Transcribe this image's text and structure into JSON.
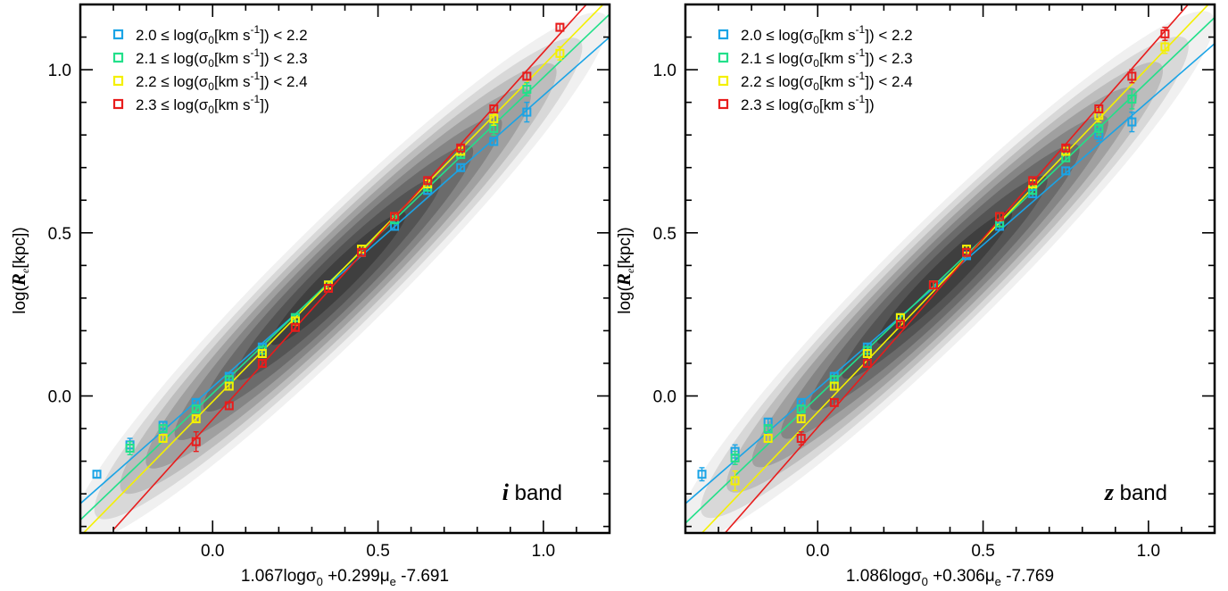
{
  "colors": {
    "contour_levels": [
      "#f0f0f0",
      "#d8d8d8",
      "#bdbdbd",
      "#a0a0a0",
      "#858585",
      "#6b6b6b",
      "#545454",
      "#3f3f3f"
    ],
    "axis": "#000000"
  },
  "chart_data": [
    {
      "type": "scatter",
      "panel": "i",
      "xlabel": "1.067logσ₀ +0.299μₑ -7.691",
      "xlabel_parts": {
        "coef1": "1.067logσ",
        "sub1": "0",
        "coef2": " +0.299μ",
        "sub2": "e",
        "const": " -7.691"
      },
      "ylabel_parts": {
        "pre": "log(",
        "R": "R",
        "sub": "e",
        "post": "[kpc])"
      },
      "band_label": {
        "letter": "i",
        "word": " band"
      },
      "xlim": [
        -0.4,
        1.2
      ],
      "ylim": [
        -0.42,
        1.2
      ],
      "xticks": [
        0.0,
        0.5,
        1.0
      ],
      "xtick_labels": [
        "0.0",
        "0.5",
        "1.0"
      ],
      "yticks": [
        0.0,
        0.5,
        1.0
      ],
      "ytick_labels": [
        "0.0",
        "0.5",
        "1.0"
      ],
      "legend": [
        {
          "color": "#1aa4e6",
          "pre": "2.0 ≤ log(σ",
          "sub": "0",
          "mid": "[km s",
          "sup": "-1",
          "post": "]) < 2.2"
        },
        {
          "color": "#22e08a",
          "pre": "2.1 ≤ log(σ",
          "sub": "0",
          "mid": "[km s",
          "sup": "-1",
          "post": "]) < 2.3"
        },
        {
          "color": "#f4f000",
          "pre": "2.2 ≤ log(σ",
          "sub": "0",
          "mid": "[km s",
          "sup": "-1",
          "post": "]) < 2.4"
        },
        {
          "color": "#e81c1c",
          "pre": "2.3 ≤ log(σ",
          "sub": "0",
          "mid": "[km s",
          "sup": "-1",
          "post": "])",
          "post2": ""
        }
      ],
      "series": [
        {
          "name": "2.0 ≤ log(σ0[km s-1]) < 2.2",
          "color": "#1aa4e6",
          "x": [
            -0.35,
            -0.25,
            -0.15,
            -0.05,
            0.05,
            0.15,
            0.25,
            0.35,
            0.45,
            0.55,
            0.65,
            0.75,
            0.85,
            0.95
          ],
          "y": [
            -0.24,
            -0.15,
            -0.09,
            -0.02,
            0.06,
            0.15,
            0.24,
            0.34,
            0.44,
            0.52,
            0.63,
            0.7,
            0.78,
            0.87
          ],
          "err": [
            0.01,
            0.02,
            0.01,
            0.01,
            0.01,
            0.01,
            0.01,
            0.01,
            0.01,
            0.01,
            0.01,
            0.01,
            0.01,
            0.03
          ],
          "fit": [
            -0.4,
            -0.33,
            1.2,
            1.1
          ]
        },
        {
          "name": "2.1 ≤ log(σ0[km s-1]) < 2.3",
          "color": "#22e08a",
          "x": [
            -0.25,
            -0.15,
            -0.05,
            0.05,
            0.15,
            0.25,
            0.35,
            0.45,
            0.55,
            0.65,
            0.75,
            0.85,
            0.95
          ],
          "y": [
            -0.16,
            -0.1,
            -0.04,
            0.05,
            0.14,
            0.24,
            0.34,
            0.44,
            0.54,
            0.64,
            0.74,
            0.82,
            0.94
          ],
          "err": [
            0.02,
            0.01,
            0.01,
            0.01,
            0.01,
            0.01,
            0.01,
            0.01,
            0.01,
            0.01,
            0.01,
            0.02,
            0.02
          ],
          "fit": [
            -0.4,
            -0.38,
            1.2,
            1.17
          ]
        },
        {
          "name": "2.2 ≤ log(σ0[km s-1]) < 2.4",
          "color": "#f4f000",
          "x": [
            -0.15,
            -0.05,
            0.05,
            0.15,
            0.25,
            0.35,
            0.45,
            0.55,
            0.65,
            0.75,
            0.85,
            1.05
          ],
          "y": [
            -0.13,
            -0.07,
            0.03,
            0.13,
            0.23,
            0.34,
            0.45,
            0.55,
            0.65,
            0.75,
            0.85,
            1.05
          ],
          "err": [
            0.01,
            0.01,
            0.01,
            0.01,
            0.01,
            0.01,
            0.01,
            0.01,
            0.01,
            0.01,
            0.02,
            0.02
          ],
          "fit": [
            -0.4,
            -0.43,
            1.2,
            1.22
          ]
        },
        {
          "name": "2.3 ≤ log(σ0[km s-1])",
          "color": "#e81c1c",
          "x": [
            -0.05,
            0.05,
            0.15,
            0.25,
            0.35,
            0.45,
            0.55,
            0.65,
            0.75,
            0.85,
            0.95,
            1.05
          ],
          "y": [
            -0.14,
            -0.03,
            0.1,
            0.21,
            0.33,
            0.44,
            0.55,
            0.66,
            0.76,
            0.88,
            0.98,
            1.13
          ],
          "err": [
            0.03,
            0.01,
            0.01,
            0.01,
            0.01,
            0.01,
            0.01,
            0.01,
            0.01,
            0.01,
            0.01,
            0.01
          ],
          "fit": [
            -0.3,
            -0.41,
            1.13,
            1.2
          ]
        }
      ]
    },
    {
      "type": "scatter",
      "panel": "z",
      "xlabel": "1.086logσ₀ +0.306μₑ -7.769",
      "xlabel_parts": {
        "coef1": "1.086logσ",
        "sub1": "0",
        "coef2": " +0.306μ",
        "sub2": "e",
        "const": " -7.769"
      },
      "ylabel_parts": {
        "pre": "log(",
        "R": "R",
        "sub": "e",
        "post": "[kpc])"
      },
      "band_label": {
        "letter": "z",
        "word": " band"
      },
      "xlim": [
        -0.4,
        1.2
      ],
      "ylim": [
        -0.42,
        1.2
      ],
      "xticks": [
        0.0,
        0.5,
        1.0
      ],
      "xtick_labels": [
        "0.0",
        "0.5",
        "1.0"
      ],
      "yticks": [
        0.0,
        0.5,
        1.0
      ],
      "ytick_labels": [
        "0.0",
        "0.5",
        "1.0"
      ],
      "legend": [
        {
          "color": "#1aa4e6",
          "pre": "2.0 ≤ log(σ",
          "sub": "0",
          "mid": "[km s",
          "sup": "-1",
          "post": "]) < 2.2"
        },
        {
          "color": "#22e08a",
          "pre": "2.1 ≤ log(σ",
          "sub": "0",
          "mid": "[km s",
          "sup": "-1",
          "post": "]) < 2.3"
        },
        {
          "color": "#f4f000",
          "pre": "2.2 ≤ log(σ",
          "sub": "0",
          "mid": "[km s",
          "sup": "-1",
          "post": "]) < 2.4"
        },
        {
          "color": "#e81c1c",
          "pre": "2.3 ≤ log(σ",
          "sub": "0",
          "mid": "[km s",
          "sup": "-1",
          "post": "])"
        }
      ],
      "series": [
        {
          "name": "2.0 ≤ log(σ0[km s-1]) < 2.2",
          "color": "#1aa4e6",
          "x": [
            -0.35,
            -0.25,
            -0.15,
            -0.05,
            0.05,
            0.15,
            0.25,
            0.35,
            0.45,
            0.55,
            0.65,
            0.75,
            0.85,
            0.95
          ],
          "y": [
            -0.24,
            -0.17,
            -0.08,
            -0.02,
            0.06,
            0.15,
            0.24,
            0.34,
            0.43,
            0.52,
            0.62,
            0.69,
            0.8,
            0.84
          ],
          "err": [
            0.02,
            0.02,
            0.01,
            0.01,
            0.01,
            0.01,
            0.01,
            0.01,
            0.01,
            0.01,
            0.01,
            0.01,
            0.02,
            0.03
          ],
          "fit": [
            -0.4,
            -0.33,
            1.2,
            1.08
          ]
        },
        {
          "name": "2.1 ≤ log(σ0[km s-1]) < 2.3",
          "color": "#22e08a",
          "x": [
            -0.25,
            -0.15,
            -0.05,
            0.05,
            0.15,
            0.25,
            0.35,
            0.45,
            0.55,
            0.65,
            0.75,
            0.85,
            0.95
          ],
          "y": [
            -0.19,
            -0.1,
            -0.04,
            0.05,
            0.14,
            0.24,
            0.34,
            0.44,
            0.53,
            0.63,
            0.73,
            0.82,
            0.91
          ],
          "err": [
            0.02,
            0.01,
            0.01,
            0.01,
            0.01,
            0.01,
            0.01,
            0.01,
            0.01,
            0.01,
            0.01,
            0.02,
            0.03
          ],
          "fit": [
            -0.4,
            -0.39,
            1.2,
            1.16
          ]
        },
        {
          "name": "2.2 ≤ log(σ0[km s-1]) < 2.4",
          "color": "#f4f000",
          "x": [
            -0.25,
            -0.15,
            -0.05,
            0.05,
            0.15,
            0.25,
            0.35,
            0.45,
            0.55,
            0.65,
            0.75,
            0.85,
            1.05
          ],
          "y": [
            -0.26,
            -0.13,
            -0.07,
            0.03,
            0.13,
            0.24,
            0.34,
            0.45,
            0.55,
            0.65,
            0.75,
            0.86,
            1.07
          ],
          "err": [
            0.03,
            0.01,
            0.01,
            0.01,
            0.01,
            0.01,
            0.01,
            0.01,
            0.01,
            0.01,
            0.01,
            0.02,
            0.02
          ],
          "fit": [
            -0.35,
            -0.42,
            1.2,
            1.22
          ]
        },
        {
          "name": "2.3 ≤ log(σ0[km s-1])",
          "color": "#e81c1c",
          "x": [
            -0.05,
            0.05,
            0.15,
            0.25,
            0.35,
            0.45,
            0.55,
            0.65,
            0.75,
            0.85,
            0.95,
            1.05
          ],
          "y": [
            -0.13,
            -0.02,
            0.1,
            0.22,
            0.34,
            0.44,
            0.55,
            0.66,
            0.76,
            0.88,
            0.98,
            1.11
          ],
          "err": [
            0.02,
            0.01,
            0.01,
            0.01,
            0.01,
            0.01,
            0.01,
            0.01,
            0.01,
            0.01,
            0.02,
            0.02
          ],
          "fit": [
            -0.28,
            -0.42,
            1.12,
            1.2
          ]
        }
      ]
    }
  ]
}
